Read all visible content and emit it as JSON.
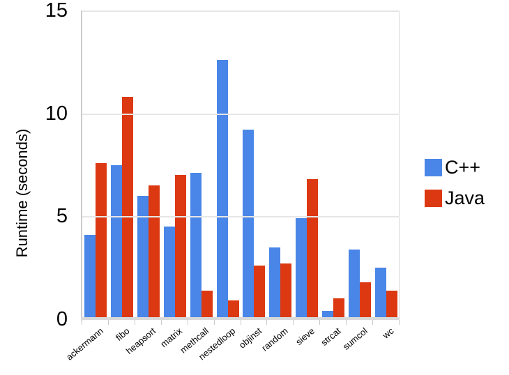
{
  "chart_data": {
    "type": "bar",
    "title": "",
    "xlabel": "",
    "ylabel": "Runtime (seconds)",
    "ylim": [
      0,
      15
    ],
    "yticks": [
      0,
      5,
      10,
      15
    ],
    "grid": true,
    "legend_position": "right",
    "categories": [
      "ackermann",
      "fibo",
      "heapsort",
      "matrix",
      "methcall",
      "nestedloop",
      "objinst",
      "random",
      "sieve",
      "strcat",
      "sumcol",
      "wc"
    ],
    "series": [
      {
        "name": "C++",
        "color": "#4A86E8",
        "values": [
          4.1,
          7.5,
          6.0,
          4.5,
          7.1,
          12.6,
          9.2,
          3.5,
          4.9,
          0.4,
          3.4,
          2.5
        ]
      },
      {
        "name": "Java",
        "color": "#DC3912",
        "values": [
          7.6,
          10.8,
          6.5,
          7.0,
          1.4,
          0.9,
          2.6,
          2.7,
          6.8,
          1.0,
          1.8,
          1.4
        ]
      }
    ]
  },
  "colors": {
    "gridline": "#e6e6e6",
    "axis": "#cccccc",
    "text": "#000000"
  }
}
